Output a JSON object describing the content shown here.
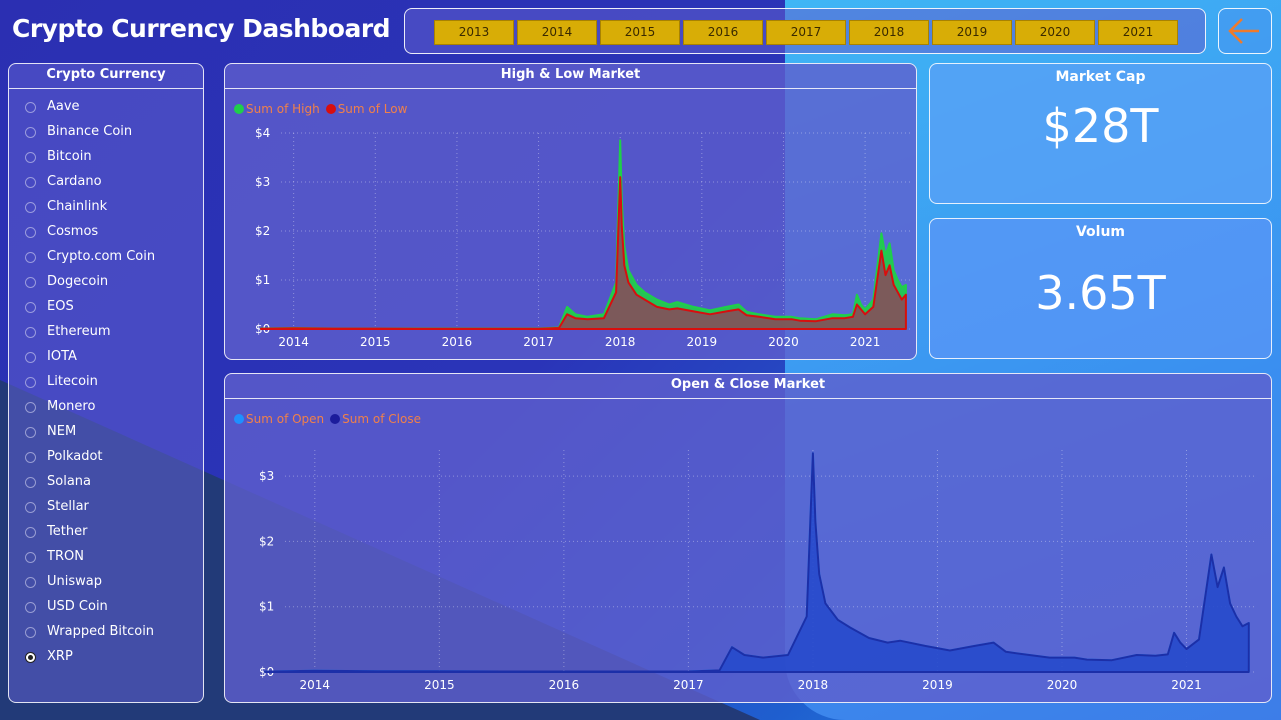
{
  "title": "Crypto Currency Dashboard",
  "years": [
    "2013",
    "2014",
    "2015",
    "2016",
    "2017",
    "2018",
    "2019",
    "2020",
    "2021"
  ],
  "back_icon": "arrow-left-icon",
  "slicer": {
    "title": "Crypto Currency",
    "items": [
      "Aave",
      "Binance Coin",
      "Bitcoin",
      "Cardano",
      "Chainlink",
      "Cosmos",
      "Crypto.com Coin",
      "Dogecoin",
      "EOS",
      "Ethereum",
      "IOTA",
      "Litecoin",
      "Monero",
      "NEM",
      "Polkadot",
      "Solana",
      "Stellar",
      "Tether",
      "TRON",
      "Uniswap",
      "USD Coin",
      "Wrapped Bitcoin",
      "XRP"
    ],
    "selected": "XRP"
  },
  "colors": {
    "high": "#1fcf4a",
    "low": "#d80e0e",
    "open": "#1e90ff",
    "close": "#1c1c9c",
    "year_btn": "#d8ad06"
  },
  "kpis": {
    "market_cap": {
      "label": "Market Cap",
      "value": "$28T"
    },
    "volume": {
      "label": "Volum",
      "value": "3.65T"
    }
  },
  "chart_data": [
    {
      "type": "area",
      "title": "High & Low Market",
      "legend": [
        "Sum of High",
        "Sum of Low"
      ],
      "y_ticks": [
        "$4",
        "$3",
        "$2",
        "$1",
        "$0"
      ],
      "x_ticks": [
        "2014",
        "2015",
        "2016",
        "2017",
        "2018",
        "2019",
        "2020",
        "2021"
      ],
      "ylim": [
        0,
        4
      ],
      "xlim": [
        2013.6,
        2021.55
      ],
      "grid": true,
      "series": [
        {
          "name": "Sum of High",
          "x": [
            2013.6,
            2014.0,
            2014.5,
            2015.0,
            2015.5,
            2016.0,
            2016.5,
            2017.0,
            2017.25,
            2017.35,
            2017.45,
            2017.6,
            2017.8,
            2017.95,
            2018.0,
            2018.02,
            2018.05,
            2018.1,
            2018.2,
            2018.3,
            2018.45,
            2018.6,
            2018.7,
            2018.9,
            2019.1,
            2019.3,
            2019.45,
            2019.55,
            2019.7,
            2019.9,
            2020.1,
            2020.2,
            2020.4,
            2020.6,
            2020.75,
            2020.85,
            2020.9,
            2020.95,
            2021.0,
            2021.1,
            2021.2,
            2021.25,
            2021.3,
            2021.35,
            2021.4,
            2021.45,
            2021.5
          ],
          "values": [
            0.01,
            0.02,
            0.01,
            0.01,
            0.01,
            0.01,
            0.01,
            0.01,
            0.03,
            0.45,
            0.3,
            0.25,
            0.3,
            0.95,
            3.85,
            2.6,
            1.7,
            1.2,
            0.9,
            0.75,
            0.6,
            0.5,
            0.55,
            0.45,
            0.38,
            0.45,
            0.5,
            0.35,
            0.3,
            0.25,
            0.25,
            0.22,
            0.2,
            0.3,
            0.28,
            0.3,
            0.7,
            0.5,
            0.4,
            0.6,
            1.95,
            1.5,
            1.75,
            1.2,
            1.0,
            0.85,
            0.9
          ]
        },
        {
          "name": "Sum of Low",
          "x": [
            2013.6,
            2014.0,
            2014.5,
            2015.0,
            2015.5,
            2016.0,
            2016.5,
            2017.0,
            2017.25,
            2017.35,
            2017.45,
            2017.6,
            2017.8,
            2017.95,
            2018.0,
            2018.02,
            2018.05,
            2018.1,
            2018.2,
            2018.3,
            2018.45,
            2018.6,
            2018.7,
            2018.9,
            2019.1,
            2019.3,
            2019.45,
            2019.55,
            2019.7,
            2019.9,
            2020.1,
            2020.2,
            2020.4,
            2020.6,
            2020.75,
            2020.85,
            2020.9,
            2020.95,
            2021.0,
            2021.1,
            2021.2,
            2021.25,
            2021.3,
            2021.35,
            2021.4,
            2021.45,
            2021.5
          ],
          "values": [
            0.005,
            0.015,
            0.008,
            0.008,
            0.006,
            0.006,
            0.006,
            0.006,
            0.02,
            0.3,
            0.22,
            0.2,
            0.22,
            0.75,
            3.1,
            2.1,
            1.3,
            0.95,
            0.7,
            0.6,
            0.45,
            0.4,
            0.42,
            0.36,
            0.3,
            0.36,
            0.4,
            0.28,
            0.25,
            0.2,
            0.2,
            0.17,
            0.16,
            0.22,
            0.22,
            0.25,
            0.5,
            0.4,
            0.3,
            0.45,
            1.6,
            1.1,
            1.3,
            0.9,
            0.75,
            0.6,
            0.7
          ]
        }
      ]
    },
    {
      "type": "area",
      "title": "Open & Close Market",
      "legend": [
        "Sum of Open",
        "Sum of Close"
      ],
      "y_ticks": [
        "$3",
        "$2",
        "$1",
        "$0"
      ],
      "x_ticks": [
        "2014",
        "2015",
        "2016",
        "2017",
        "2018",
        "2019",
        "2020",
        "2021"
      ],
      "ylim": [
        0,
        3.4
      ],
      "xlim": [
        2013.6,
        2021.55
      ],
      "grid": true,
      "series": [
        {
          "name": "Sum of Open",
          "x": [
            2013.6,
            2014.0,
            2014.5,
            2015.0,
            2015.5,
            2016.0,
            2016.5,
            2017.0,
            2017.25,
            2017.35,
            2017.45,
            2017.6,
            2017.8,
            2017.95,
            2018.0,
            2018.02,
            2018.05,
            2018.1,
            2018.2,
            2018.3,
            2018.45,
            2018.6,
            2018.7,
            2018.9,
            2019.1,
            2019.3,
            2019.45,
            2019.55,
            2019.7,
            2019.9,
            2020.1,
            2020.2,
            2020.4,
            2020.6,
            2020.75,
            2020.85,
            2020.9,
            2020.95,
            2021.0,
            2021.1,
            2021.2,
            2021.25,
            2021.3,
            2021.35,
            2021.4,
            2021.45,
            2021.5
          ],
          "values": [
            0.006,
            0.02,
            0.01,
            0.01,
            0.008,
            0.008,
            0.008,
            0.008,
            0.025,
            0.38,
            0.26,
            0.22,
            0.26,
            0.85,
            3.35,
            2.3,
            1.5,
            1.05,
            0.8,
            0.68,
            0.52,
            0.45,
            0.48,
            0.4,
            0.33,
            0.4,
            0.45,
            0.31,
            0.27,
            0.22,
            0.22,
            0.19,
            0.18,
            0.26,
            0.25,
            0.27,
            0.6,
            0.45,
            0.35,
            0.5,
            1.8,
            1.3,
            1.6,
            1.05,
            0.85,
            0.7,
            0.75
          ]
        },
        {
          "name": "Sum of Close",
          "x": [
            2013.6,
            2014.0,
            2014.5,
            2015.0,
            2015.5,
            2016.0,
            2016.5,
            2017.0,
            2017.25,
            2017.35,
            2017.45,
            2017.6,
            2017.8,
            2017.95,
            2018.0,
            2018.02,
            2018.05,
            2018.1,
            2018.2,
            2018.3,
            2018.45,
            2018.6,
            2018.7,
            2018.9,
            2019.1,
            2019.3,
            2019.45,
            2019.55,
            2019.7,
            2019.9,
            2020.1,
            2020.2,
            2020.4,
            2020.6,
            2020.75,
            2020.85,
            2020.9,
            2020.95,
            2021.0,
            2021.1,
            2021.2,
            2021.25,
            2021.3,
            2021.35,
            2021.4,
            2021.45,
            2021.5
          ],
          "values": [
            0.006,
            0.02,
            0.01,
            0.01,
            0.008,
            0.008,
            0.008,
            0.008,
            0.025,
            0.38,
            0.26,
            0.22,
            0.26,
            0.85,
            3.35,
            2.3,
            1.5,
            1.05,
            0.8,
            0.68,
            0.52,
            0.45,
            0.48,
            0.4,
            0.33,
            0.4,
            0.45,
            0.31,
            0.27,
            0.22,
            0.22,
            0.19,
            0.18,
            0.26,
            0.25,
            0.27,
            0.6,
            0.45,
            0.35,
            0.5,
            1.8,
            1.3,
            1.6,
            1.05,
            0.85,
            0.7,
            0.75
          ]
        }
      ]
    }
  ]
}
